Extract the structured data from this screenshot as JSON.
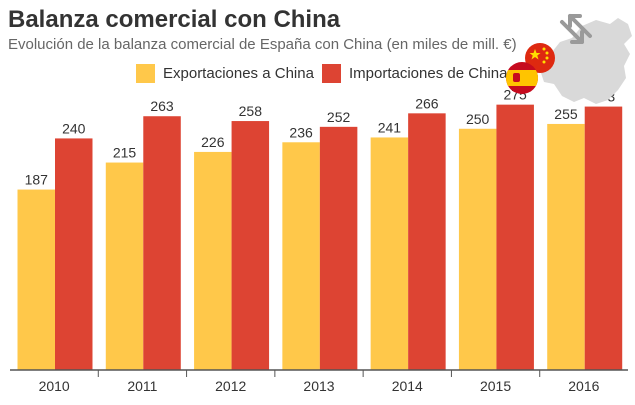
{
  "title": "Balanza comercial con China",
  "subtitle": "Evolución de la balanza comercial de España con China (en miles de mill. €)",
  "colors": {
    "exports": "#FFC84A",
    "imports": "#DD4433",
    "axis": "#555555",
    "map": "#D9D9D9",
    "china_flag": "#DE2910",
    "china_star": "#FFDE00",
    "spain_red": "#C60B1E",
    "spain_yellow": "#FFC400"
  },
  "decoration": {
    "map_icon": "china-map-icon",
    "arrows_icon": "trade-arrows-icon",
    "china_flag_icon": "china-flag-icon",
    "spain_flag_icon": "spain-flag-icon"
  },
  "chart_data": {
    "type": "bar",
    "title": "Balanza comercial con China",
    "subtitle": "Evolución de la balanza comercial de España con China (en miles de mill. €)",
    "categories": [
      "2010",
      "2011",
      "2012",
      "2013",
      "2014",
      "2015",
      "2016"
    ],
    "series": [
      {
        "name": "Exportaciones a China",
        "values": [
          187,
          215,
          226,
          236,
          241,
          250,
          255
        ]
      },
      {
        "name": "Importaciones de China",
        "values": [
          240,
          263,
          258,
          252,
          266,
          275,
          273
        ]
      }
    ],
    "xlabel": "",
    "ylabel": "",
    "ylim": [
      0,
      285
    ],
    "grid": false,
    "legend": "top"
  }
}
